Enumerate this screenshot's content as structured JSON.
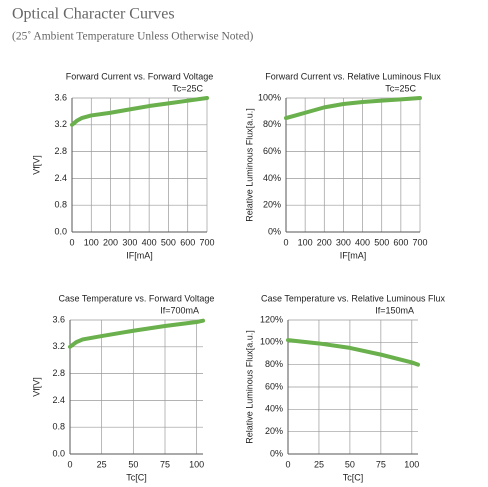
{
  "header": {
    "title": "Optical Character Curves",
    "subtitle": "(25˚ Ambient Temperature Unless Otherwise Noted)"
  },
  "chart_data": [
    {
      "type": "line",
      "title": "Forward Current vs. Forward Voltage",
      "annotation": "Tc=25C",
      "x_label": "IF[mA]",
      "y_label": "Vf[V]",
      "x": [
        0,
        25,
        50,
        100,
        200,
        300,
        400,
        500,
        600,
        700
      ],
      "series": [
        {
          "name": "Vf",
          "color": "#6ab04c",
          "values": [
            3.2,
            3.26,
            3.3,
            3.34,
            3.38,
            3.43,
            3.48,
            3.52,
            3.56,
            3.6
          ]
        }
      ],
      "xlim": [
        0,
        700
      ],
      "xticks": [
        0,
        100,
        200,
        300,
        400,
        500,
        600,
        700
      ],
      "ylim": [
        0.0,
        3.6
      ],
      "y_broken": true,
      "yticks": [
        {
          "value": 0,
          "label": "0.0"
        },
        0.8,
        2.4,
        2.8,
        3.2,
        3.6
      ],
      "grid": true
    },
    {
      "type": "line",
      "title": "Forward Current vs. Relative Luminous Flux",
      "annotation": "Tc=25C",
      "x_label": "IF[mA]",
      "y_label": "Relative Luminous Flux[a.u.]",
      "x": [
        0,
        50,
        100,
        200,
        300,
        400,
        500,
        600,
        700
      ],
      "series": [
        {
          "name": "Flux",
          "color": "#6ab04c",
          "values": [
            85,
            87,
            89,
            93,
            95.5,
            97,
            98,
            99,
            100
          ]
        }
      ],
      "xlim": [
        0,
        700
      ],
      "xticks": [
        0,
        100,
        200,
        300,
        400,
        500,
        600,
        700
      ],
      "ylim": [
        0,
        100
      ],
      "yticks": [
        {
          "value": 0,
          "label": "0%"
        },
        {
          "value": 20,
          "label": "20%"
        },
        {
          "value": 40,
          "label": "40%"
        },
        {
          "value": 60,
          "label": "60%"
        },
        {
          "value": 80,
          "label": "80%"
        },
        {
          "value": 100,
          "label": "100%"
        }
      ],
      "grid": true
    },
    {
      "type": "line",
      "title": "Case Temperature vs. Forward Voltage",
      "annotation": "If=700mA",
      "x_label": "Tc[C]",
      "y_label": "Vf[V]",
      "x": [
        0,
        5,
        10,
        25,
        50,
        75,
        100,
        105
      ],
      "series": [
        {
          "name": "Vf",
          "color": "#6ab04c",
          "values": [
            3.2,
            3.27,
            3.31,
            3.36,
            3.44,
            3.51,
            3.57,
            3.59
          ]
        }
      ],
      "xlim": [
        0,
        105
      ],
      "xticks": [
        0,
        25,
        50,
        75,
        100
      ],
      "ylim": [
        0.0,
        3.6
      ],
      "y_broken": true,
      "yticks": [
        {
          "value": 0,
          "label": "0.0"
        },
        0.8,
        2.4,
        2.8,
        3.2,
        3.6
      ],
      "grid": true
    },
    {
      "type": "line",
      "title": "Case Temperature vs. Relative Luminous Flux",
      "annotation": "If=150mA",
      "x_label": "Tc[C]",
      "y_label": "Relative Luminous Flux[a.u.]",
      "x": [
        0,
        25,
        50,
        75,
        100,
        105
      ],
      "series": [
        {
          "name": "Flux",
          "color": "#6ab04c",
          "values": [
            102,
            99,
            95,
            89,
            82,
            80
          ]
        }
      ],
      "xlim": [
        0,
        105
      ],
      "xticks": [
        0,
        25,
        50,
        75,
        100
      ],
      "ylim": [
        0,
        120
      ],
      "yticks": [
        {
          "value": 0,
          "label": "0%"
        },
        {
          "value": 20,
          "label": "20%"
        },
        {
          "value": 40,
          "label": "40%"
        },
        {
          "value": 60,
          "label": "60%"
        },
        {
          "value": 80,
          "label": "80%"
        },
        {
          "value": 100,
          "label": "100%"
        },
        {
          "value": 120,
          "label": "120%"
        }
      ],
      "grid": true
    }
  ]
}
